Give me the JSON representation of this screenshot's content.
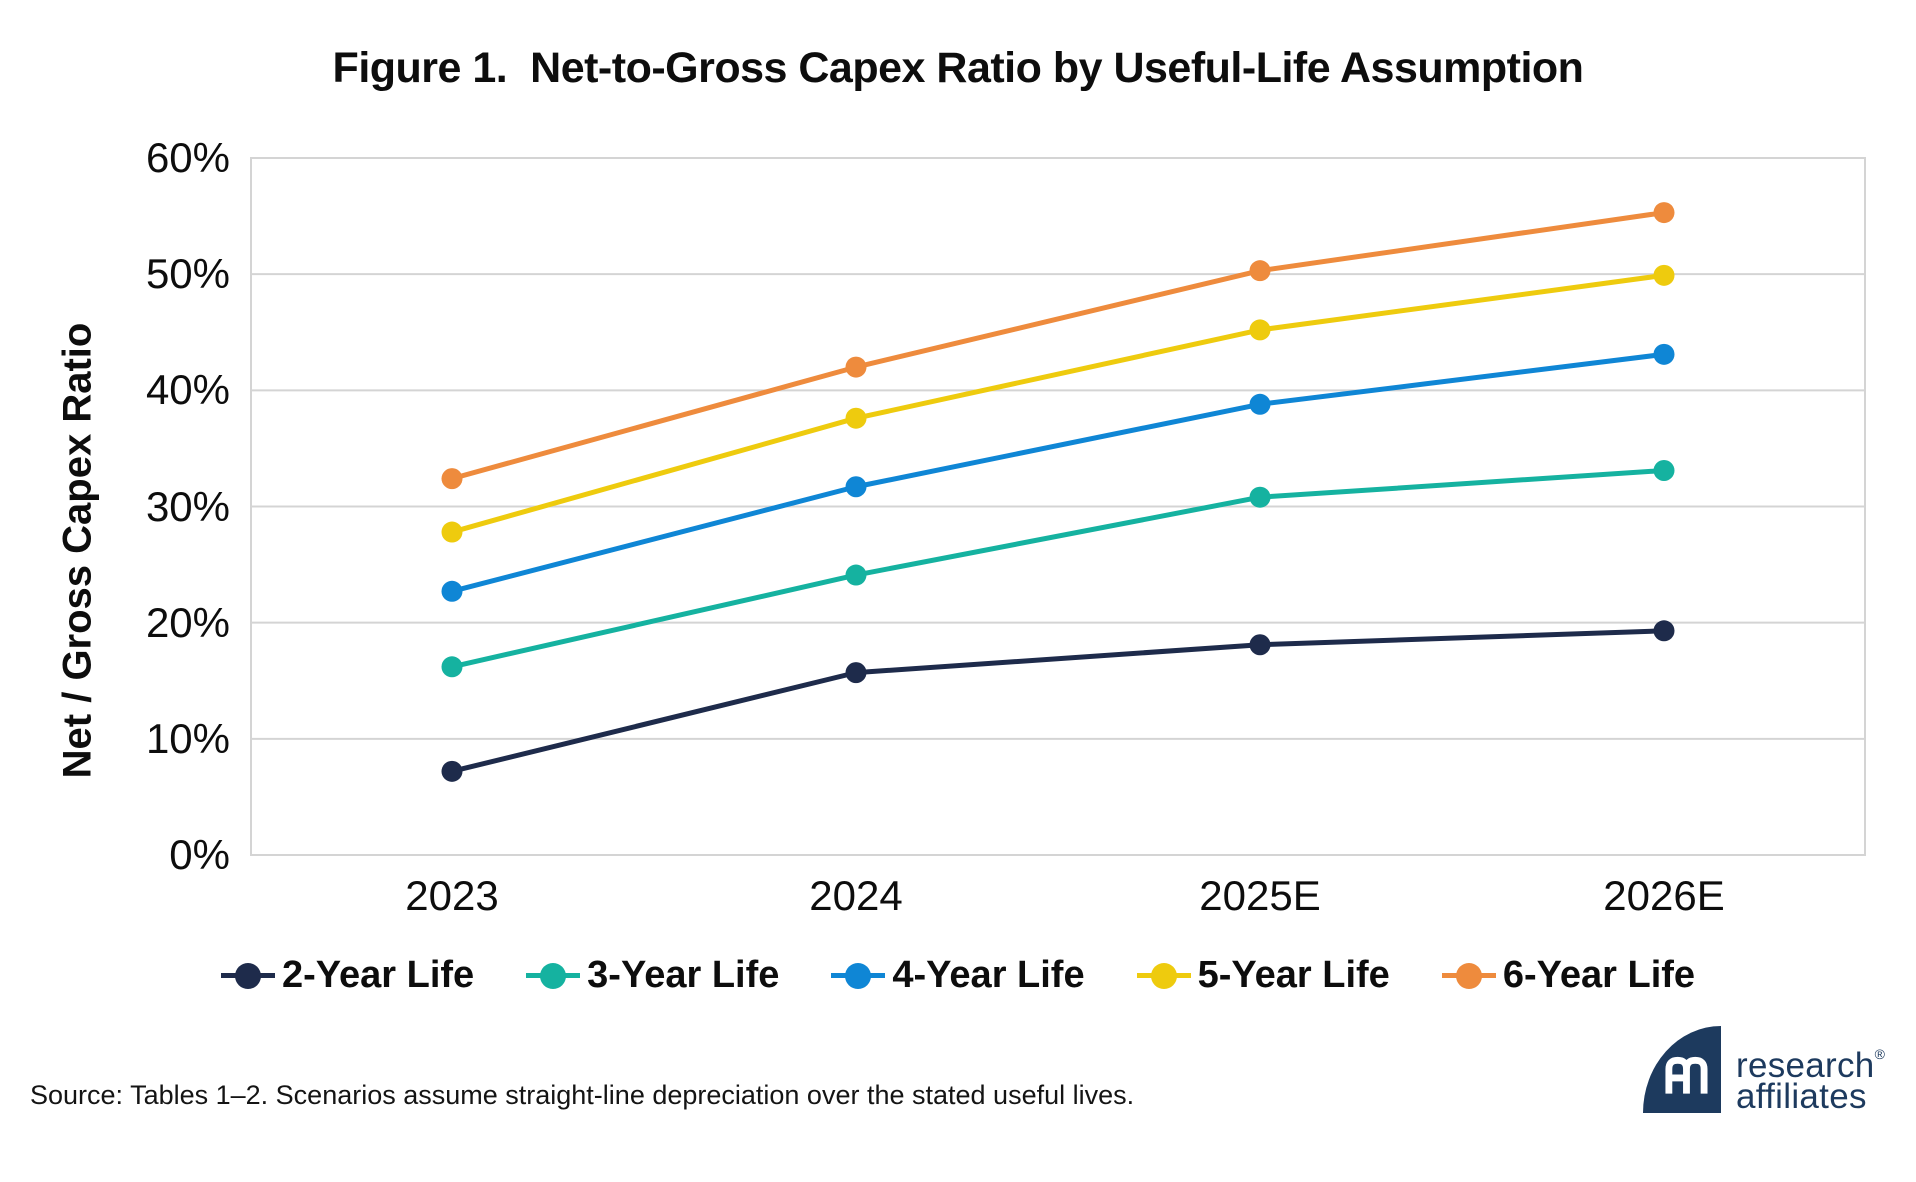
{
  "title": "Figure 1.  Net-to-Gross Capex Ratio by Useful-Life Assumption",
  "source_note": "Source: Tables 1–2. Scenarios assume straight-line depreciation over the stated useful lives.",
  "logo": {
    "line1": "research",
    "line2": "affiliates",
    "trademark": "®"
  },
  "colors": {
    "logo_navy": "#1d3a5e",
    "gridline": "#d4d4d4",
    "axis_text": "#0d0d0d"
  },
  "chart_data": {
    "type": "line",
    "title": "Figure 1. Net-to-Gross Capex Ratio by Useful-Life Assumption",
    "categories": [
      "2023",
      "2024",
      "2025E",
      "2026E"
    ],
    "series": [
      {
        "name": "2-Year Life",
        "color": "#1e2b4b",
        "values": [
          7.2,
          15.7,
          18.1,
          19.3
        ]
      },
      {
        "name": "3-Year Life",
        "color": "#15b2a0",
        "values": [
          16.2,
          24.1,
          30.8,
          33.1
        ]
      },
      {
        "name": "4-Year Life",
        "color": "#0f86d5",
        "values": [
          22.7,
          31.7,
          38.8,
          43.1
        ]
      },
      {
        "name": "5-Year Life",
        "color": "#eecb0e",
        "values": [
          27.8,
          37.6,
          45.2,
          49.9
        ]
      },
      {
        "name": "6-Year Life",
        "color": "#ee8b3d",
        "values": [
          32.4,
          42.0,
          50.3,
          55.3
        ]
      }
    ],
    "xlabel": "",
    "ylabel": "Net / Gross Capex Ratio",
    "ylim": [
      0,
      60
    ],
    "ytick_step": 10,
    "ytick_suffix": "%",
    "grid": "horizontal",
    "legend_position": "bottom"
  }
}
